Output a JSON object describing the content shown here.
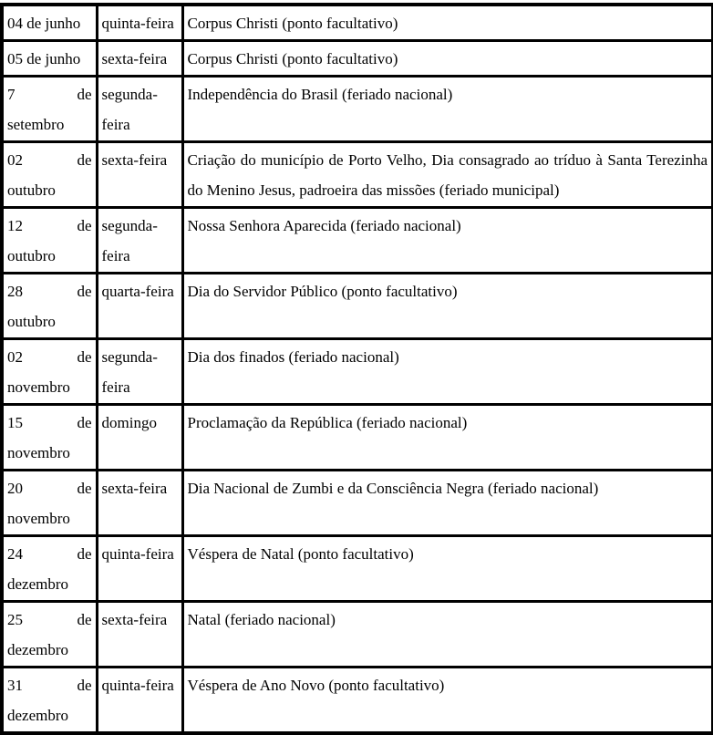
{
  "document": {
    "language": "pt-BR",
    "content_type": "holiday-calendar-table"
  },
  "colors": {
    "border": "#000000",
    "text": "#000000",
    "background": "#ffffff"
  },
  "table": {
    "columns": [
      "date",
      "weekday",
      "description"
    ],
    "rows": [
      {
        "date": "04 de junho",
        "weekday": "quinta-feira",
        "description": "Corpus Christi (ponto facultativo)"
      },
      {
        "date": "05 de junho",
        "weekday": "sexta-feira",
        "description": "Corpus Christi (ponto facultativo)"
      },
      {
        "date": "7 de setembro",
        "weekday": "segunda-feira",
        "description": "Independência do Brasil (feriado nacional)"
      },
      {
        "date": "02 de outubro",
        "weekday": "sexta-feira",
        "description": "Criação do município de Porto Velho, Dia consagrado ao tríduo à Santa Terezinha do Menino Jesus, padroeira das missões (feriado municipal)"
      },
      {
        "date": "12 de outubro",
        "weekday": "segunda-feira",
        "description": "Nossa Senhora Aparecida (feriado nacional)"
      },
      {
        "date": "28 de outubro",
        "weekday": "quarta-feira",
        "description": "Dia do Servidor Público (ponto facultativo)"
      },
      {
        "date": "02 de novembro",
        "weekday": "segunda-feira",
        "description": "Dia dos finados (feriado nacional)"
      },
      {
        "date": "15 de novembro",
        "weekday": "domingo",
        "description": "Proclamação da República (feriado nacional)"
      },
      {
        "date": "20 de novembro",
        "weekday": "sexta-feira",
        "description": "Dia Nacional de Zumbi e da Consciência Negra (feriado nacional)"
      },
      {
        "date": "24 de dezembro",
        "weekday": "quinta-feira",
        "description": "Véspera de Natal (ponto facultativo)"
      },
      {
        "date": "25 de dezembro",
        "weekday": "sexta-feira",
        "description": "Natal (feriado nacional)"
      },
      {
        "date": "31 de dezembro",
        "weekday": "quinta-feira",
        "description": "Véspera de Ano Novo (ponto facultativo)"
      }
    ]
  }
}
